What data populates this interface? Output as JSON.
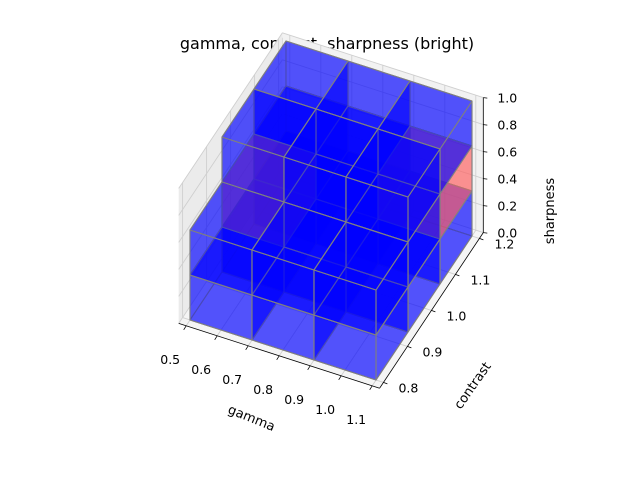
{
  "chart_data": {
    "type": "voxel",
    "title": "gamma, contrast, sharpness (bright)",
    "xlabel": "gamma",
    "ylabel": "contrast",
    "zlabel": "sharpness",
    "x_ticks": [
      "0.5",
      "0.6",
      "0.7",
      "0.8",
      "0.9",
      "1.0",
      "1.1"
    ],
    "y_ticks": [
      "0.8",
      "0.9",
      "1.0",
      "1.1",
      "1.2"
    ],
    "z_ticks": [
      "0.0",
      "0.2",
      "0.4",
      "0.6",
      "0.8",
      "1.0"
    ],
    "xlim": [
      0.5,
      1.1
    ],
    "ylim": [
      0.8,
      1.2
    ],
    "zlim": [
      0.0,
      1.0
    ],
    "x_bins": [
      0.5,
      0.7,
      0.9,
      1.1
    ],
    "y_bins": [
      0.8,
      0.933,
      1.067,
      1.2
    ],
    "z_bins": [
      0.0,
      0.333,
      0.667,
      1.0
    ],
    "colors": {
      "default": "#0000ff",
      "highlight": "#ff6060",
      "edge": "#808080"
    },
    "voxels": [
      {
        "x": 0,
        "y": 0,
        "z": 0,
        "color": "default"
      },
      {
        "x": 1,
        "y": 0,
        "z": 0,
        "color": "default"
      },
      {
        "x": 2,
        "y": 0,
        "z": 0,
        "color": "default"
      },
      {
        "x": 0,
        "y": 1,
        "z": 0,
        "color": "default"
      },
      {
        "x": 1,
        "y": 1,
        "z": 0,
        "color": "default"
      },
      {
        "x": 2,
        "y": 1,
        "z": 0,
        "color": "default"
      },
      {
        "x": 0,
        "y": 2,
        "z": 0,
        "color": "default"
      },
      {
        "x": 1,
        "y": 2,
        "z": 0,
        "color": "default"
      },
      {
        "x": 2,
        "y": 2,
        "z": 0,
        "color": "default"
      },
      {
        "x": 0,
        "y": 0,
        "z": 1,
        "color": "default"
      },
      {
        "x": 1,
        "y": 0,
        "z": 1,
        "color": "default"
      },
      {
        "x": 2,
        "y": 0,
        "z": 1,
        "color": "default"
      },
      {
        "x": 0,
        "y": 1,
        "z": 1,
        "color": "highlight"
      },
      {
        "x": 1,
        "y": 1,
        "z": 1,
        "color": "default"
      },
      {
        "x": 2,
        "y": 1,
        "z": 1,
        "color": "default"
      },
      {
        "x": 0,
        "y": 2,
        "z": 1,
        "color": "default"
      },
      {
        "x": 1,
        "y": 2,
        "z": 1,
        "color": "default"
      },
      {
        "x": 2,
        "y": 2,
        "z": 1,
        "color": "highlight"
      },
      {
        "x": 0,
        "y": 1,
        "z": 2,
        "color": "default"
      },
      {
        "x": 1,
        "y": 1,
        "z": 2,
        "color": "default"
      },
      {
        "x": 2,
        "y": 1,
        "z": 2,
        "color": "default"
      },
      {
        "x": 0,
        "y": 2,
        "z": 2,
        "color": "default"
      },
      {
        "x": 1,
        "y": 2,
        "z": 2,
        "color": "default"
      },
      {
        "x": 2,
        "y": 2,
        "z": 2,
        "color": "default"
      }
    ]
  }
}
